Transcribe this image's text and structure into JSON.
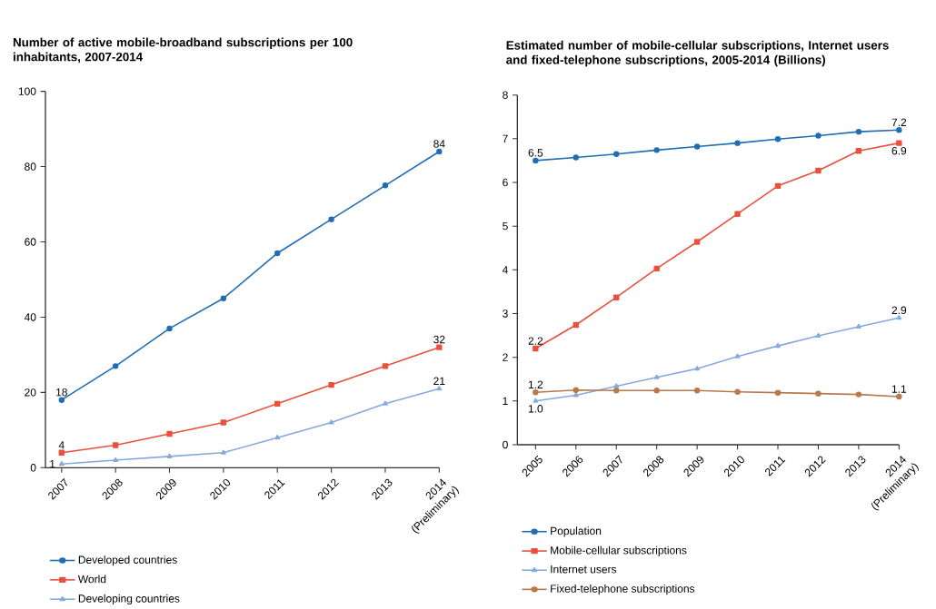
{
  "chart_data": [
    {
      "type": "line",
      "title": "Number of active mobile-broadband subscriptions per 100 inhabitants, 2007-2014",
      "categories": [
        "2007",
        "2008",
        "2009",
        "2010",
        "2011",
        "2012",
        "2013",
        "2014 (Preliminary)"
      ],
      "ylim": [
        0,
        100
      ],
      "yticks": [
        0,
        20,
        40,
        60,
        80,
        100
      ],
      "legend": "bottom",
      "series": [
        {
          "name": "Developed countries",
          "color": "#1f6db3",
          "marker": "circle",
          "values": [
            18,
            27,
            37,
            45,
            57,
            66,
            75,
            84
          ],
          "value_labels": [
            "18",
            null,
            null,
            null,
            null,
            null,
            null,
            "84"
          ]
        },
        {
          "name": "World",
          "color": "#e8513c",
          "marker": "square",
          "values": [
            4,
            6,
            9,
            12,
            17,
            22,
            27,
            32
          ],
          "value_labels": [
            "4",
            null,
            null,
            null,
            null,
            null,
            null,
            "32"
          ]
        },
        {
          "name": "Developing countries",
          "color": "#86a9de",
          "marker": "triangle",
          "values": [
            1,
            2,
            3,
            4,
            8,
            12,
            17,
            21
          ],
          "value_labels": [
            "1",
            null,
            null,
            null,
            null,
            null,
            null,
            "21"
          ]
        }
      ]
    },
    {
      "type": "line",
      "title": "Estimated number of mobile-cellular subscriptions, Internet users and fixed-telephone subscriptions, 2005-2014 (Billions)",
      "categories": [
        "2005",
        "2006",
        "2007",
        "2008",
        "2009",
        "2010",
        "2011",
        "2012",
        "2013",
        "2014 (Preliminary)"
      ],
      "ylim": [
        0,
        8
      ],
      "yticks": [
        0,
        1,
        2,
        3,
        4,
        5,
        6,
        7,
        8
      ],
      "legend": "bottom",
      "series": [
        {
          "name": "Population",
          "color": "#1f6db3",
          "marker": "circle",
          "values": [
            6.5,
            6.57,
            6.65,
            6.74,
            6.82,
            6.9,
            6.99,
            7.07,
            7.16,
            7.2
          ],
          "value_labels": [
            "6.5",
            null,
            null,
            null,
            null,
            null,
            null,
            null,
            null,
            "7.2"
          ]
        },
        {
          "name": "Mobile-cellular subscriptions",
          "color": "#e8513c",
          "marker": "square",
          "values": [
            2.2,
            2.74,
            3.37,
            4.03,
            4.64,
            5.28,
            5.92,
            6.27,
            6.72,
            6.9
          ],
          "value_labels": [
            "2.2",
            null,
            null,
            null,
            null,
            null,
            null,
            null,
            null,
            "6.9"
          ]
        },
        {
          "name": "Internet users",
          "color": "#86a9de",
          "marker": "triangle",
          "values": [
            1.0,
            1.13,
            1.34,
            1.54,
            1.74,
            2.02,
            2.26,
            2.49,
            2.7,
            2.9
          ],
          "value_labels": [
            "1.0",
            null,
            null,
            null,
            null,
            null,
            null,
            null,
            null,
            "2.9"
          ]
        },
        {
          "name": "Fixed-telephone subscriptions",
          "color": "#b8794c",
          "marker": "circle",
          "values": [
            1.2,
            1.25,
            1.24,
            1.24,
            1.24,
            1.21,
            1.19,
            1.17,
            1.15,
            1.1
          ],
          "value_labels": [
            "1.2",
            null,
            null,
            null,
            null,
            null,
            null,
            null,
            null,
            "1.1"
          ]
        }
      ]
    }
  ]
}
